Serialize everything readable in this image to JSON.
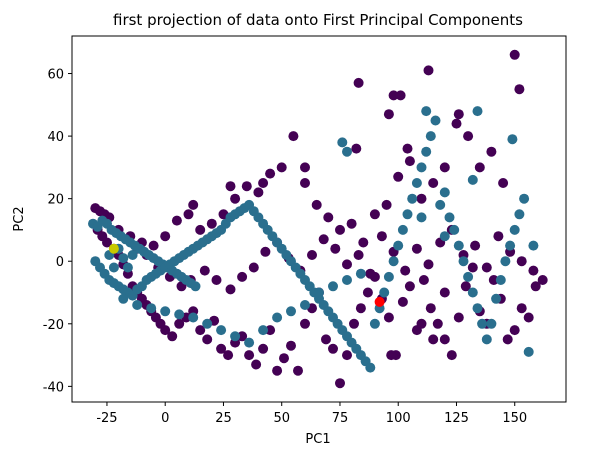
{
  "chart_data": {
    "type": "scatter",
    "title": "first projection of data onto First Principal Components",
    "xlabel": "PC1",
    "ylabel": "PC2",
    "xlim": [
      -40,
      172
    ],
    "ylim": [
      -45,
      72
    ],
    "x_ticks": [
      "-25",
      "0",
      "25",
      "50",
      "75",
      "100",
      "125",
      "150"
    ],
    "y_ticks": [
      "-40",
      "-20",
      "0",
      "20",
      "40",
      "60"
    ],
    "x_tick_values": [
      -25,
      0,
      25,
      50,
      75,
      100,
      125,
      150
    ],
    "y_tick_values": [
      -40,
      -20,
      0,
      20,
      40,
      60
    ],
    "grid": false,
    "colors": {
      "class_a": "#440154",
      "class_b": "#2a6f8e",
      "centroid_a": "#ff0000",
      "centroid_b": "#c8c800"
    },
    "series": [
      {
        "color_key": "class_a",
        "points": [
          [
            -30,
            17
          ],
          [
            -28,
            16
          ],
          [
            -26,
            15
          ],
          [
            -24,
            14
          ],
          [
            -29,
            10
          ],
          [
            -27,
            8
          ],
          [
            -25,
            6
          ],
          [
            -22,
            4
          ],
          [
            -20,
            2
          ],
          [
            -18,
            -1
          ],
          [
            -16,
            -4
          ],
          [
            -14,
            -8
          ],
          [
            -12,
            -10
          ],
          [
            -10,
            -12
          ],
          [
            -8,
            -14
          ],
          [
            -6,
            -16
          ],
          [
            -4,
            -18
          ],
          [
            -2,
            -20
          ],
          [
            0,
            -22
          ],
          [
            3,
            -24
          ],
          [
            6,
            -20
          ],
          [
            9,
            -18
          ],
          [
            12,
            -16
          ],
          [
            15,
            -22
          ],
          [
            18,
            -25
          ],
          [
            21,
            -19
          ],
          [
            24,
            -28
          ],
          [
            27,
            -30
          ],
          [
            30,
            -26
          ],
          [
            33,
            -24
          ],
          [
            36,
            -30
          ],
          [
            39,
            -33
          ],
          [
            42,
            -28
          ],
          [
            45,
            -22
          ],
          [
            48,
            -35
          ],
          [
            51,
            -31
          ],
          [
            54,
            -27
          ],
          [
            57,
            -35
          ],
          [
            60,
            -20
          ],
          [
            63,
            -15
          ],
          [
            66,
            -10
          ],
          [
            69,
            -25
          ],
          [
            72,
            -28
          ],
          [
            75,
            -39
          ],
          [
            78,
            -30
          ],
          [
            81,
            -20
          ],
          [
            84,
            -15
          ],
          [
            87,
            -10
          ],
          [
            90,
            -5
          ],
          [
            93,
            -12
          ],
          [
            96,
            -18
          ],
          [
            99,
            -30
          ],
          [
            102,
            -13
          ],
          [
            105,
            -8
          ],
          [
            108,
            -22
          ],
          [
            111,
            -6
          ],
          [
            114,
            -15
          ],
          [
            117,
            -20
          ],
          [
            120,
            -25
          ],
          [
            123,
            -30
          ],
          [
            126,
            -18
          ],
          [
            129,
            -8
          ],
          [
            132,
            -2
          ],
          [
            135,
            -16
          ],
          [
            138,
            -20
          ],
          [
            141,
            -6
          ],
          [
            144,
            -12
          ],
          [
            147,
            -25
          ],
          [
            150,
            -22
          ],
          [
            153,
            -15
          ],
          [
            156,
            -18
          ],
          [
            159,
            -8
          ],
          [
            162,
            -6
          ],
          [
            5,
            13
          ],
          [
            10,
            15
          ],
          [
            15,
            10
          ],
          [
            20,
            12
          ],
          [
            25,
            15
          ],
          [
            30,
            20
          ],
          [
            35,
            24
          ],
          [
            40,
            22
          ],
          [
            45,
            28
          ],
          [
            50,
            30
          ],
          [
            55,
            40
          ],
          [
            60,
            25
          ],
          [
            65,
            18
          ],
          [
            70,
            14
          ],
          [
            75,
            10
          ],
          [
            80,
            12
          ],
          [
            85,
            6
          ],
          [
            90,
            15
          ],
          [
            95,
            18
          ],
          [
            100,
            27
          ],
          [
            105,
            32
          ],
          [
            110,
            20
          ],
          [
            115,
            25
          ],
          [
            120,
            30
          ],
          [
            125,
            44
          ],
          [
            130,
            40
          ],
          [
            135,
            30
          ],
          [
            140,
            35
          ],
          [
            145,
            25
          ],
          [
            150,
            66
          ],
          [
            152,
            55
          ],
          [
            98,
            53
          ],
          [
            101,
            53
          ],
          [
            83,
            57
          ],
          [
            113,
            61
          ],
          [
            96,
            47
          ],
          [
            126,
            47
          ],
          [
            104,
            36
          ],
          [
            82,
            36
          ],
          [
            60,
            30
          ],
          [
            42,
            25
          ],
          [
            28,
            24
          ],
          [
            12,
            18
          ],
          [
            0,
            8
          ],
          [
            -5,
            5
          ],
          [
            -10,
            6
          ],
          [
            -15,
            8
          ],
          [
            -20,
            10
          ],
          [
            -12,
            4
          ],
          [
            -8,
            2
          ],
          [
            -3,
            -2
          ],
          [
            2,
            -5
          ],
          [
            7,
            -8
          ],
          [
            11,
            -6
          ],
          [
            17,
            -3
          ],
          [
            22,
            -6
          ],
          [
            28,
            -9
          ],
          [
            33,
            -5
          ],
          [
            38,
            -2
          ],
          [
            43,
            3
          ],
          [
            48,
            6
          ],
          [
            53,
            1
          ],
          [
            58,
            -3
          ],
          [
            63,
            2
          ],
          [
            68,
            7
          ],
          [
            73,
            4
          ],
          [
            78,
            -1
          ],
          [
            83,
            2
          ],
          [
            88,
            -4
          ],
          [
            93,
            8
          ],
          [
            98,
            3
          ],
          [
            103,
            -3
          ],
          [
            108,
            4
          ],
          [
            113,
            -1
          ],
          [
            118,
            6
          ],
          [
            123,
            10
          ],
          [
            128,
            2
          ],
          [
            133,
            5
          ],
          [
            138,
            -2
          ],
          [
            143,
            8
          ],
          [
            148,
            3
          ],
          [
            153,
            0
          ],
          [
            158,
            -3
          ],
          [
            110,
            -20
          ],
          [
            115,
            -25
          ],
          [
            120,
            -10
          ],
          [
            97,
            -30
          ]
        ]
      },
      {
        "color_key": "class_b",
        "points": [
          [
            -31,
            12
          ],
          [
            -29,
            11
          ],
          [
            -27,
            13
          ],
          [
            -25,
            12
          ],
          [
            -23,
            10
          ],
          [
            -21,
            9
          ],
          [
            -19,
            8
          ],
          [
            -17,
            7
          ],
          [
            -15,
            6
          ],
          [
            -13,
            5
          ],
          [
            -11,
            4
          ],
          [
            -9,
            3
          ],
          [
            -7,
            2
          ],
          [
            -5,
            1
          ],
          [
            -3,
            0
          ],
          [
            -1,
            -1
          ],
          [
            1,
            -2
          ],
          [
            3,
            -3
          ],
          [
            5,
            -4
          ],
          [
            7,
            -5
          ],
          [
            9,
            -6
          ],
          [
            11,
            -7
          ],
          [
            13,
            -8
          ],
          [
            -30,
            0
          ],
          [
            -28,
            -2
          ],
          [
            -26,
            -4
          ],
          [
            -24,
            -6
          ],
          [
            -22,
            -7
          ],
          [
            -20,
            -8
          ],
          [
            -18,
            -9
          ],
          [
            -16,
            -10
          ],
          [
            -14,
            -11
          ],
          [
            -12,
            -9
          ],
          [
            -10,
            -8
          ],
          [
            -8,
            -6
          ],
          [
            -6,
            -5
          ],
          [
            -4,
            -4
          ],
          [
            -2,
            -3
          ],
          [
            0,
            -2
          ],
          [
            2,
            -1
          ],
          [
            4,
            0
          ],
          [
            6,
            1
          ],
          [
            8,
            2
          ],
          [
            10,
            3
          ],
          [
            12,
            4
          ],
          [
            14,
            5
          ],
          [
            16,
            6
          ],
          [
            18,
            7
          ],
          [
            20,
            8
          ],
          [
            22,
            9
          ],
          [
            24,
            10
          ],
          [
            26,
            12
          ],
          [
            28,
            14
          ],
          [
            30,
            15
          ],
          [
            32,
            16
          ],
          [
            34,
            17
          ],
          [
            36,
            18
          ],
          [
            38,
            16
          ],
          [
            40,
            14
          ],
          [
            42,
            12
          ],
          [
            44,
            10
          ],
          [
            46,
            8
          ],
          [
            48,
            6
          ],
          [
            50,
            4
          ],
          [
            52,
            2
          ],
          [
            54,
            0
          ],
          [
            56,
            -2
          ],
          [
            58,
            -4
          ],
          [
            60,
            -6
          ],
          [
            62,
            -8
          ],
          [
            64,
            -10
          ],
          [
            66,
            -12
          ],
          [
            68,
            -14
          ],
          [
            70,
            -16
          ],
          [
            72,
            -18
          ],
          [
            74,
            -20
          ],
          [
            76,
            -22
          ],
          [
            78,
            -24
          ],
          [
            80,
            -26
          ],
          [
            82,
            -28
          ],
          [
            84,
            -30
          ],
          [
            86,
            -32
          ],
          [
            88,
            -34
          ],
          [
            90,
            -20
          ],
          [
            92,
            -15
          ],
          [
            94,
            -10
          ],
          [
            96,
            -5
          ],
          [
            98,
            0
          ],
          [
            100,
            5
          ],
          [
            102,
            10
          ],
          [
            104,
            15
          ],
          [
            106,
            20
          ],
          [
            108,
            25
          ],
          [
            110,
            30
          ],
          [
            112,
            35
          ],
          [
            114,
            40
          ],
          [
            116,
            45
          ],
          [
            118,
            18
          ],
          [
            120,
            22
          ],
          [
            122,
            14
          ],
          [
            124,
            10
          ],
          [
            126,
            5
          ],
          [
            128,
            0
          ],
          [
            130,
            -5
          ],
          [
            132,
            -10
          ],
          [
            134,
            -15
          ],
          [
            136,
            -20
          ],
          [
            138,
            -25
          ],
          [
            140,
            -20
          ],
          [
            142,
            -12
          ],
          [
            144,
            -6
          ],
          [
            146,
            0
          ],
          [
            148,
            5
          ],
          [
            150,
            10
          ],
          [
            152,
            15
          ],
          [
            154,
            20
          ],
          [
            156,
            -29
          ],
          [
            158,
            5
          ],
          [
            112,
            48
          ],
          [
            134,
            48
          ],
          [
            149,
            39
          ],
          [
            132,
            26
          ],
          [
            76,
            38
          ],
          [
            78,
            35
          ],
          [
            110,
            14
          ],
          [
            120,
            8
          ],
          [
            -18,
            -12
          ],
          [
            -12,
            -14
          ],
          [
            -6,
            -15
          ],
          [
            0,
            -16
          ],
          [
            6,
            -17
          ],
          [
            12,
            -18
          ],
          [
            18,
            -20
          ],
          [
            24,
            -22
          ],
          [
            30,
            -24
          ],
          [
            36,
            -26
          ],
          [
            42,
            -22
          ],
          [
            48,
            -18
          ],
          [
            54,
            -16
          ],
          [
            60,
            -14
          ],
          [
            66,
            -10
          ],
          [
            72,
            -8
          ],
          [
            78,
            -6
          ],
          [
            84,
            -4
          ],
          [
            -24,
            2
          ],
          [
            -22,
            -2
          ],
          [
            -20,
            4
          ],
          [
            -18,
            1
          ],
          [
            -16,
            -2
          ],
          [
            -14,
            2
          ]
        ]
      }
    ],
    "centroids": [
      {
        "color_key": "centroid_a",
        "x": 92,
        "y": -13
      },
      {
        "color_key": "centroid_b",
        "x": -22,
        "y": 4
      }
    ]
  }
}
